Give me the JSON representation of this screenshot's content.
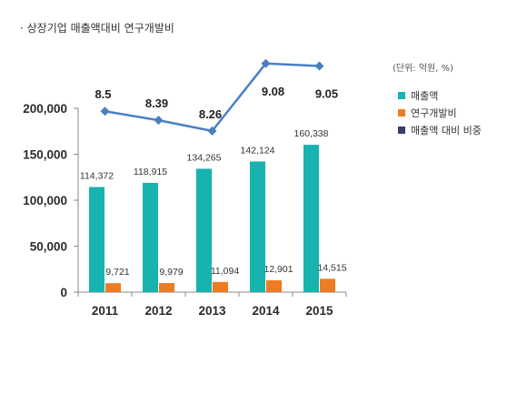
{
  "chart_data": {
    "type": "bar",
    "title": "· 상장기업 매출액대비 연구개발비",
    "unit_note": "(단위: 억원, %)",
    "categories": [
      "2011",
      "2012",
      "2013",
      "2014",
      "2015"
    ],
    "series": [
      {
        "name": "매출액",
        "type": "bar",
        "color": "#17b3ae",
        "values": [
          114372,
          118915,
          134265,
          142124,
          160338
        ],
        "data_labels": [
          "114,372",
          "118,915",
          "134,265",
          "142,124",
          "160,338"
        ]
      },
      {
        "name": "연구개발비",
        "type": "bar",
        "color": "#ef7b22",
        "values": [
          9721,
          9979,
          11094,
          12901,
          14515
        ],
        "data_labels": [
          "9,721",
          "9,979",
          "11,094",
          "12,901",
          "14,515"
        ]
      },
      {
        "name": "매출액 대비 비중",
        "type": "line",
        "axis": "secondary",
        "color": "#4a7fc8",
        "legend_color": "#3a3c6e",
        "values": [
          8.5,
          8.39,
          8.26,
          9.08,
          9.05
        ],
        "data_labels": [
          "8.5",
          "8.39",
          "8.26",
          "9.08",
          "9.05"
        ]
      }
    ],
    "ylim": [
      0,
      200000
    ],
    "yticks": [
      0,
      50000,
      100000,
      150000,
      200000
    ],
    "ytick_labels": [
      "0",
      "50,000",
      "100,000",
      "150,000",
      "200,000"
    ],
    "grid": false,
    "legend": {
      "position": "right"
    }
  }
}
